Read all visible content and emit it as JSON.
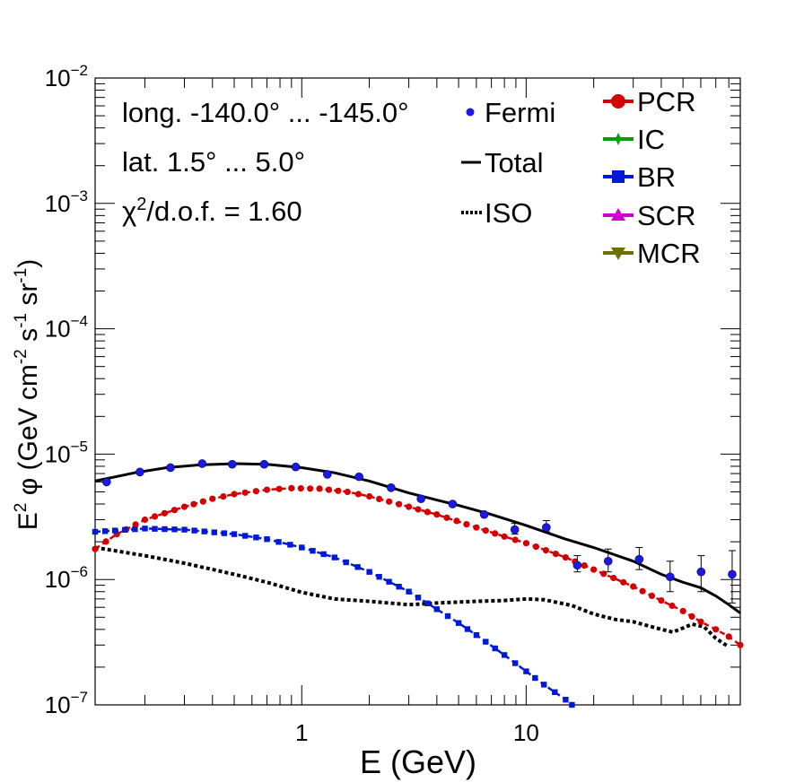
{
  "chart_data": {
    "type": "line",
    "xscale": "log",
    "yscale": "log",
    "xlim": [
      0.12,
      90
    ],
    "ylim": [
      1e-07,
      0.01
    ],
    "xlabel": "E (GeV)",
    "ylabel_parts": [
      "E",
      "2",
      " φ (GeV cm",
      "-2",
      " s",
      "-1",
      " sr",
      "-1",
      ")"
    ],
    "x_ticks": [
      {
        "value": 1,
        "label": "1"
      },
      {
        "value": 10,
        "label": "10"
      }
    ],
    "y_ticks": [
      {
        "value": 1e-07,
        "base": "10",
        "exp": "−7"
      },
      {
        "value": 1e-06,
        "base": "10",
        "exp": "−6"
      },
      {
        "value": 1e-05,
        "base": "10",
        "exp": "−5"
      },
      {
        "value": 0.0001,
        "base": "10",
        "exp": "−4"
      },
      {
        "value": 0.001,
        "base": "10",
        "exp": "−3"
      },
      {
        "value": 0.01,
        "base": "10",
        "exp": "−2"
      }
    ],
    "annotations": {
      "longitude": "long. -140.0° ... -145.0°",
      "latitude": "lat. 1.5° ... 5.0°",
      "chi2_symbol": "χ",
      "chi2_exp": "2",
      "chi2_rest": "/d.o.f. = 1.60"
    },
    "legend_left": [
      {
        "key": "fermi",
        "label": "Fermi"
      },
      {
        "key": "total",
        "label": "Total"
      },
      {
        "key": "iso",
        "label": "ISO"
      }
    ],
    "legend_right": [
      {
        "key": "pcr",
        "label": "PCR",
        "color": "#d40000"
      },
      {
        "key": "ic",
        "label": "IC",
        "color": "#00a000"
      },
      {
        "key": "br",
        "label": "BR",
        "color": "#0018d8"
      },
      {
        "key": "scr",
        "label": "SCR",
        "color": "#d000d0"
      },
      {
        "key": "mcr",
        "label": "MCR",
        "color": "#707000"
      }
    ],
    "series": [
      {
        "name": "Total",
        "style": "solid",
        "color": "#000000",
        "points": [
          [
            0.12,
            6.1e-06
          ],
          [
            0.18,
            7.1e-06
          ],
          [
            0.25,
            7.8e-06
          ],
          [
            0.35,
            8.2e-06
          ],
          [
            0.5,
            8.4e-06
          ],
          [
            0.7,
            8.3e-06
          ],
          [
            1.0,
            7.8e-06
          ],
          [
            1.4,
            7.1e-06
          ],
          [
            2.0,
            6.1e-06
          ],
          [
            3.0,
            4.9e-06
          ],
          [
            4.0,
            4.3e-06
          ],
          [
            5.0,
            3.9e-06
          ],
          [
            7.0,
            3.3e-06
          ],
          [
            10.0,
            2.7e-06
          ],
          [
            15.0,
            2.1e-06
          ],
          [
            20.0,
            1.8e-06
          ],
          [
            30.0,
            1.4e-06
          ],
          [
            40.0,
            1.1e-06
          ],
          [
            50.0,
            9.5e-07
          ],
          [
            60.0,
            8.6e-07
          ],
          [
            70.0,
            7.4e-07
          ],
          [
            80.0,
            6.3e-07
          ],
          [
            90.0,
            5.4e-07
          ]
        ]
      },
      {
        "name": "ISO",
        "style": "dotted",
        "color": "#000000",
        "points": [
          [
            0.12,
            1.8e-06
          ],
          [
            0.2,
            1.55e-06
          ],
          [
            0.3,
            1.35e-06
          ],
          [
            0.5,
            1.1e-06
          ],
          [
            0.7,
            9.5e-07
          ],
          [
            1.0,
            7.9e-07
          ],
          [
            1.4,
            7e-07
          ],
          [
            2.0,
            6.7e-07
          ],
          [
            3.0,
            6.3e-07
          ],
          [
            4.0,
            6.5e-07
          ],
          [
            6.0,
            6.7e-07
          ],
          [
            8.0,
            6.8e-07
          ],
          [
            10.0,
            7e-07
          ],
          [
            12.0,
            6.9e-07
          ],
          [
            16.0,
            6.2e-07
          ],
          [
            20.0,
            5.3e-07
          ],
          [
            25.0,
            4.8e-07
          ],
          [
            30.0,
            4.6e-07
          ],
          [
            38.0,
            4.1e-07
          ],
          [
            45.0,
            3.8e-07
          ],
          [
            50.0,
            4.1e-07
          ],
          [
            55.0,
            4.4e-07
          ],
          [
            62.0,
            4.2e-07
          ],
          [
            70.0,
            3.4e-07
          ],
          [
            80.0,
            2.9e-07
          ]
        ]
      },
      {
        "name": "PCR",
        "style": "marker-line",
        "marker": "circle",
        "color": "#d40000",
        "points": [
          [
            0.12,
            1.75e-06
          ],
          [
            0.15,
            2.3e-06
          ],
          [
            0.2,
            3e-06
          ],
          [
            0.3,
            3.8e-06
          ],
          [
            0.4,
            4.4e-06
          ],
          [
            0.5,
            4.8e-06
          ],
          [
            0.7,
            5.2e-06
          ],
          [
            0.9,
            5.35e-06
          ],
          [
            1.2,
            5.3e-06
          ],
          [
            1.6,
            5e-06
          ],
          [
            2.0,
            4.6e-06
          ],
          [
            3.0,
            3.8e-06
          ],
          [
            4.0,
            3.3e-06
          ],
          [
            6.0,
            2.6e-06
          ],
          [
            8.0,
            2.2e-06
          ],
          [
            10.0,
            1.95e-06
          ],
          [
            15.0,
            1.5e-06
          ],
          [
            20.0,
            1.2e-06
          ],
          [
            30.0,
            8.8e-07
          ],
          [
            40.0,
            6.8e-07
          ],
          [
            50.0,
            5.6e-07
          ],
          [
            60.0,
            4.6e-07
          ],
          [
            70.0,
            4e-07
          ],
          [
            80.0,
            3.5e-07
          ],
          [
            90.0,
            3e-07
          ]
        ]
      },
      {
        "name": "BR",
        "style": "marker-line",
        "marker": "square",
        "color": "#0018d8",
        "points": [
          [
            0.12,
            2.4e-06
          ],
          [
            0.2,
            2.55e-06
          ],
          [
            0.3,
            2.5e-06
          ],
          [
            0.5,
            2.3e-06
          ],
          [
            0.7,
            2.1e-06
          ],
          [
            1.0,
            1.8e-06
          ],
          [
            1.4,
            1.5e-06
          ],
          [
            2.0,
            1.15e-06
          ],
          [
            3.0,
            8e-07
          ],
          [
            4.0,
            5.8e-07
          ],
          [
            5.0,
            4.5e-07
          ],
          [
            6.0,
            3.6e-07
          ],
          [
            8.0,
            2.5e-07
          ],
          [
            10.0,
            1.85e-07
          ],
          [
            12.0,
            1.45e-07
          ],
          [
            15.0,
            1.1e-07
          ],
          [
            16.0,
            1e-07
          ]
        ]
      }
    ],
    "fermi_points": [
      {
        "x": 0.135,
        "y": 6e-06
      },
      {
        "x": 0.19,
        "y": 7.2e-06
      },
      {
        "x": 0.26,
        "y": 7.8e-06
      },
      {
        "x": 0.36,
        "y": 8.4e-06
      },
      {
        "x": 0.49,
        "y": 8.3e-06
      },
      {
        "x": 0.68,
        "y": 8.3e-06
      },
      {
        "x": 0.94,
        "y": 7.9e-06
      },
      {
        "x": 1.3,
        "y": 6.9e-06
      },
      {
        "x": 1.8,
        "y": 6.6e-06
      },
      {
        "x": 2.5,
        "y": 5.4e-06
      },
      {
        "x": 3.4,
        "y": 4.4e-06
      },
      {
        "x": 4.7,
        "y": 4e-06
      },
      {
        "x": 6.5,
        "y": 3.3e-06
      },
      {
        "x": 8.9,
        "y": 2.5e-06,
        "lo": 2.3e-06,
        "hi": 2.8e-06
      },
      {
        "x": 12.3,
        "y": 2.6e-06,
        "lo": 2.4e-06,
        "hi": 2.95e-06
      },
      {
        "x": 16.9,
        "y": 1.3e-06,
        "lo": 1.15e-06,
        "hi": 1.55e-06
      },
      {
        "x": 23.2,
        "y": 1.4e-06,
        "lo": 1.15e-06,
        "hi": 1.75e-06
      },
      {
        "x": 31.9,
        "y": 1.45e-06,
        "lo": 1.2e-06,
        "hi": 1.8e-06
      },
      {
        "x": 43.8,
        "y": 1.05e-06,
        "lo": 8e-07,
        "hi": 1.4e-06
      },
      {
        "x": 60.2,
        "y": 1.15e-06,
        "lo": 8e-07,
        "hi": 1.55e-06
      },
      {
        "x": 82.8,
        "y": 1.1e-06,
        "lo": 6.5e-07,
        "hi": 1.7e-06
      }
    ]
  }
}
